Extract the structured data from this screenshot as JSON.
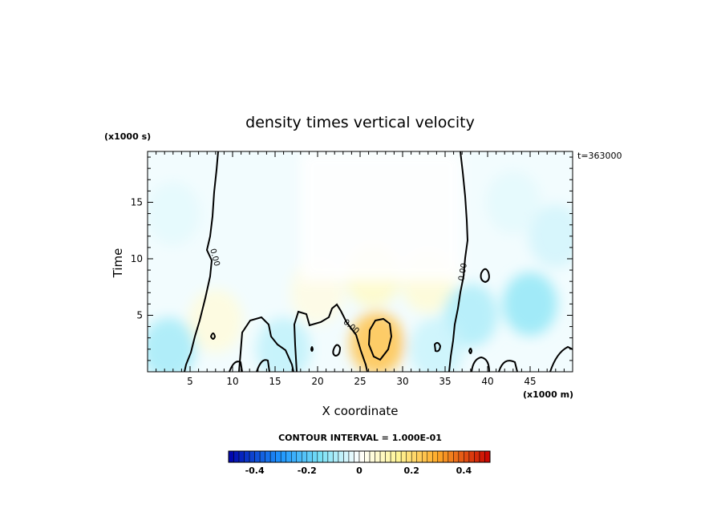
{
  "chart_data": {
    "type": "heatmap",
    "title": "density times vertical velocity",
    "xlabel": "X coordinate",
    "ylabel": "Time",
    "x_scale_label": "(x1000 m)",
    "y_scale_label": "(x1000 s)",
    "time_stamp": "t=363000",
    "xlim": [
      0,
      50
    ],
    "ylim": [
      0,
      19.5
    ],
    "x_ticks": [
      5,
      10,
      15,
      20,
      25,
      30,
      35,
      40,
      45
    ],
    "y_ticks": [
      5,
      10,
      15
    ],
    "contour_interval_text": "CONTOUR INTERVAL = 1.000E-01",
    "contour_level_labels": [
      "0.00",
      "0.00",
      "0.00"
    ],
    "colorbar": {
      "range": [
        -0.5,
        0.5
      ],
      "tick_values": [
        -0.4,
        -0.2,
        0,
        0.2,
        0.4
      ],
      "tick_labels": [
        "-0.4",
        "-0.2",
        "0",
        "0.2",
        "0.4"
      ]
    },
    "field_features": [
      {
        "x": 27,
        "y": 2.5,
        "value": 0.25
      },
      {
        "x": 26.5,
        "y": 8.5,
        "value": 0.08
      },
      {
        "x": 33,
        "y": 8,
        "value": 0.06
      },
      {
        "x": 8,
        "y": 4.5,
        "value": 0.05
      },
      {
        "x": 20,
        "y": 7,
        "value": 0.04
      },
      {
        "x": 45,
        "y": 6,
        "value": -0.12
      },
      {
        "x": 38,
        "y": 5,
        "value": -0.09
      },
      {
        "x": 2.5,
        "y": 2,
        "value": -0.1
      },
      {
        "x": 16,
        "y": 2,
        "value": -0.07
      },
      {
        "x": 34,
        "y": 2,
        "value": -0.06
      },
      {
        "x": 48,
        "y": 12,
        "value": -0.05
      },
      {
        "x": 3,
        "y": 14,
        "value": -0.03
      },
      {
        "x": 43,
        "y": 15,
        "value": -0.03
      }
    ]
  },
  "colors": {
    "axis": "#000000",
    "zero_contour": "#000000"
  }
}
